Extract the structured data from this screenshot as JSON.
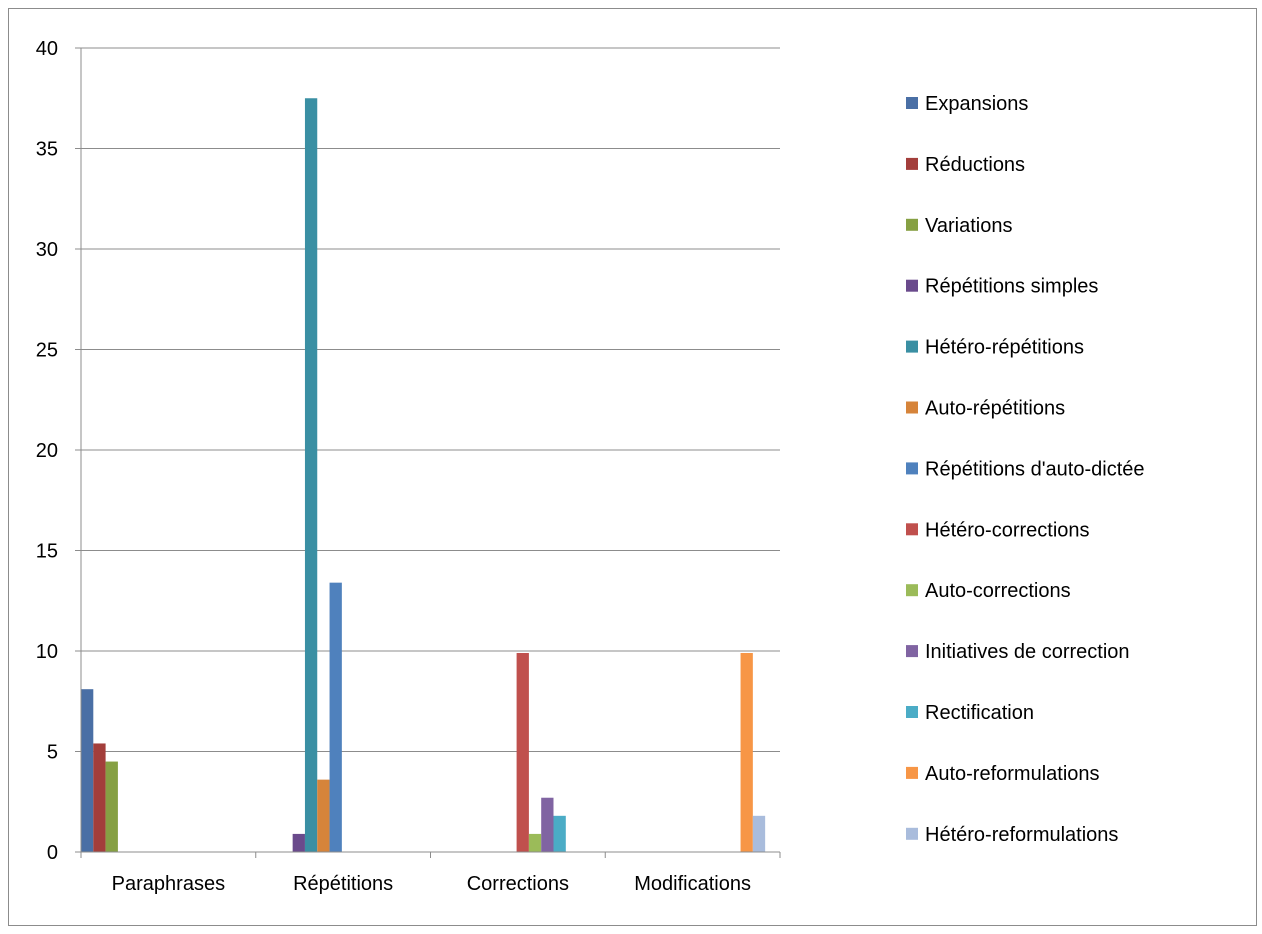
{
  "chart_data": {
    "type": "bar",
    "categories": [
      "Paraphrases",
      "Répétitions",
      "Corrections",
      "Modifications"
    ],
    "ylim": [
      0,
      40
    ],
    "yticks": [
      0,
      5,
      10,
      15,
      20,
      25,
      30,
      35,
      40
    ],
    "grid": true,
    "legend_position": "right",
    "series": [
      {
        "name": "Expansions",
        "color": "#4a6fa5",
        "values": [
          8.1,
          0,
          0,
          0
        ]
      },
      {
        "name": "Réductions",
        "color": "#a33e3b",
        "values": [
          5.4,
          0,
          0,
          0
        ]
      },
      {
        "name": "Variations",
        "color": "#86a043",
        "values": [
          4.5,
          0,
          0,
          0
        ]
      },
      {
        "name": "Répétitions simples",
        "color": "#6a4a8c",
        "values": [
          0,
          0.9,
          0,
          0
        ]
      },
      {
        "name": "Hétéro-répétitions",
        "color": "#3a8fa3",
        "values": [
          0,
          37.5,
          0,
          0
        ]
      },
      {
        "name": "Auto-répétitions",
        "color": "#d6843a",
        "values": [
          0,
          3.6,
          0,
          0
        ]
      },
      {
        "name": "Répétitions d'auto-dictée",
        "color": "#4f81bd",
        "values": [
          0,
          13.4,
          0,
          0
        ]
      },
      {
        "name": "Hétéro-corrections",
        "color": "#c0504d",
        "values": [
          0,
          0,
          9.9,
          0
        ]
      },
      {
        "name": "Auto-corrections",
        "color": "#9bbb59",
        "values": [
          0,
          0,
          0.9,
          0
        ]
      },
      {
        "name": "Initiatives de correction",
        "color": "#8064a2",
        "values": [
          0,
          0,
          2.7,
          0
        ]
      },
      {
        "name": "Rectification",
        "color": "#4bacc6",
        "values": [
          0,
          0,
          1.8,
          0
        ]
      },
      {
        "name": "Auto-reformulations",
        "color": "#f79646",
        "values": [
          0,
          0,
          0,
          9.9
        ]
      },
      {
        "name": "Hétéro-reformulations",
        "color": "#a9bcdc",
        "values": [
          0,
          0,
          0,
          1.8
        ]
      }
    ]
  }
}
